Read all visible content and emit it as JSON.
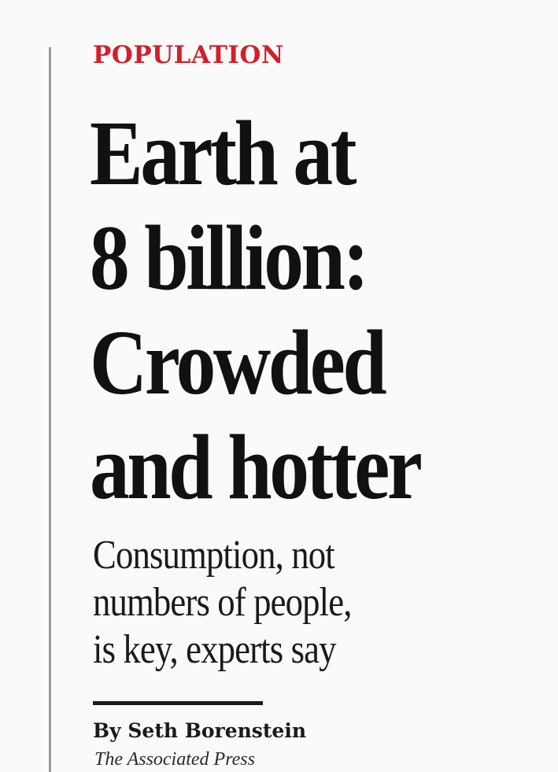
{
  "article": {
    "kicker": "POPULATION",
    "headline_lines": [
      "Earth at",
      "8 billion:",
      "Crowded",
      "and hotter"
    ],
    "deck_lines": [
      "Consumption, not",
      "numbers of people,",
      "is key, experts say"
    ],
    "byline": "By Seth Borenstein",
    "source": "The Associated Press"
  },
  "colors": {
    "kicker": "#d41e2a",
    "text": "#111111",
    "vertical_rule": "#9a9ca6"
  }
}
